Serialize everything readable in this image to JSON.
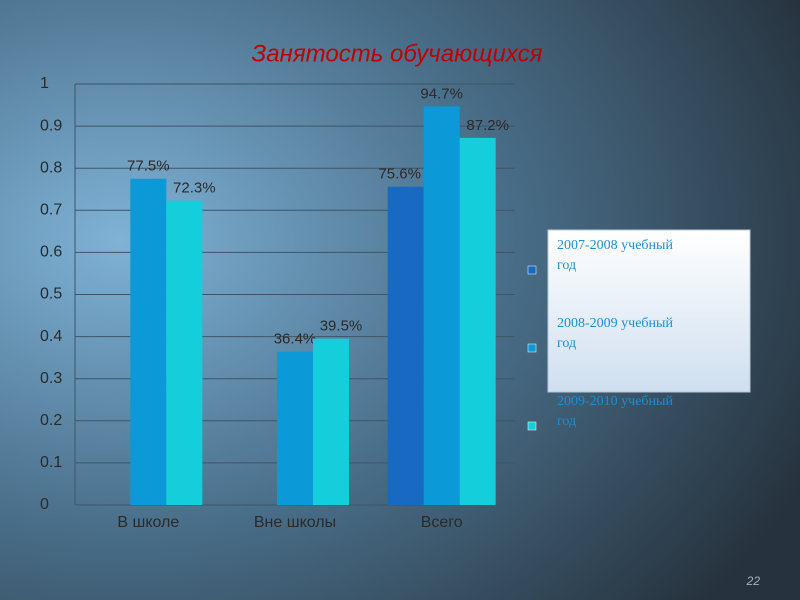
{
  "chart_data": {
    "type": "bar",
    "title": "Занятость обучающихся",
    "categories": [
      "В школе",
      "Вне школы",
      "Всего"
    ],
    "series": [
      {
        "name": "2007-2008 учебный год",
        "color": "#1769c2",
        "values": [
          null,
          null,
          0.756
        ],
        "value_labels": [
          null,
          null,
          "75.6%"
        ]
      },
      {
        "name": "2008-2009 учебный год",
        "color": "#0b99d8",
        "values": [
          0.775,
          0.364,
          0.947
        ],
        "value_labels": [
          "77.5%",
          "36.4%",
          "94.7%"
        ]
      },
      {
        "name": "2009-2010 учебный год",
        "color": "#14cedb",
        "values": [
          0.723,
          0.395,
          0.872
        ],
        "value_labels": [
          "72.3%",
          "39.5%",
          "87.2%"
        ]
      }
    ],
    "ylim": [
      0,
      1
    ],
    "yticks": [
      0,
      0.1,
      0.2,
      0.3,
      0.4,
      0.5,
      0.6,
      0.7,
      0.8,
      0.9,
      1
    ],
    "grid": true
  },
  "page_number": "22"
}
